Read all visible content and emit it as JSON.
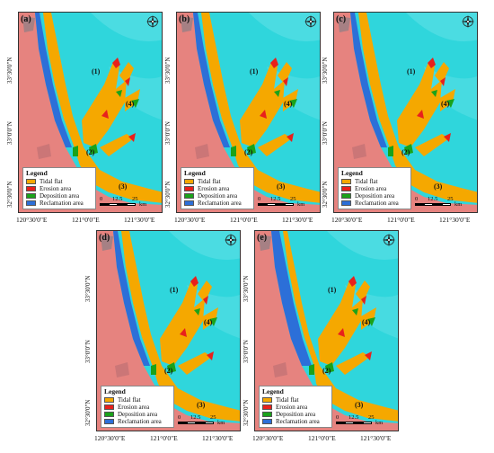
{
  "panels": [
    {
      "label": "(a)"
    },
    {
      "label": "(b)"
    },
    {
      "label": "(c)"
    },
    {
      "label": "(d)"
    },
    {
      "label": "(e)"
    }
  ],
  "regions": [
    "(1)",
    "(2)",
    "(3)",
    "(4)"
  ],
  "legend": {
    "title": "Legend",
    "items": [
      {
        "label": "Tidal flat",
        "color": "#f5a800"
      },
      {
        "label": "Erosion area",
        "color": "#e8201c"
      },
      {
        "label": "Deposition area",
        "color": "#1aa21a"
      },
      {
        "label": "Reclamation area",
        "color": "#2c6fd8"
      }
    ]
  },
  "scale": {
    "ticks": [
      "0",
      "12.5",
      "25"
    ],
    "unit": "km"
  },
  "axes": {
    "y": [
      "33°30'0\"N",
      "33°0'0\"N",
      "32°30'0\"N"
    ],
    "x": [
      "120°30'0\"E",
      "121°0'0\"E",
      "121°30'0\"E"
    ]
  },
  "colors": {
    "sea": "#2fd6dc",
    "land": "#e6837f",
    "tidal": "#f5a800",
    "erosion": "#e8201c",
    "deposition": "#1aa21a",
    "reclamation": "#2c6fd8"
  }
}
